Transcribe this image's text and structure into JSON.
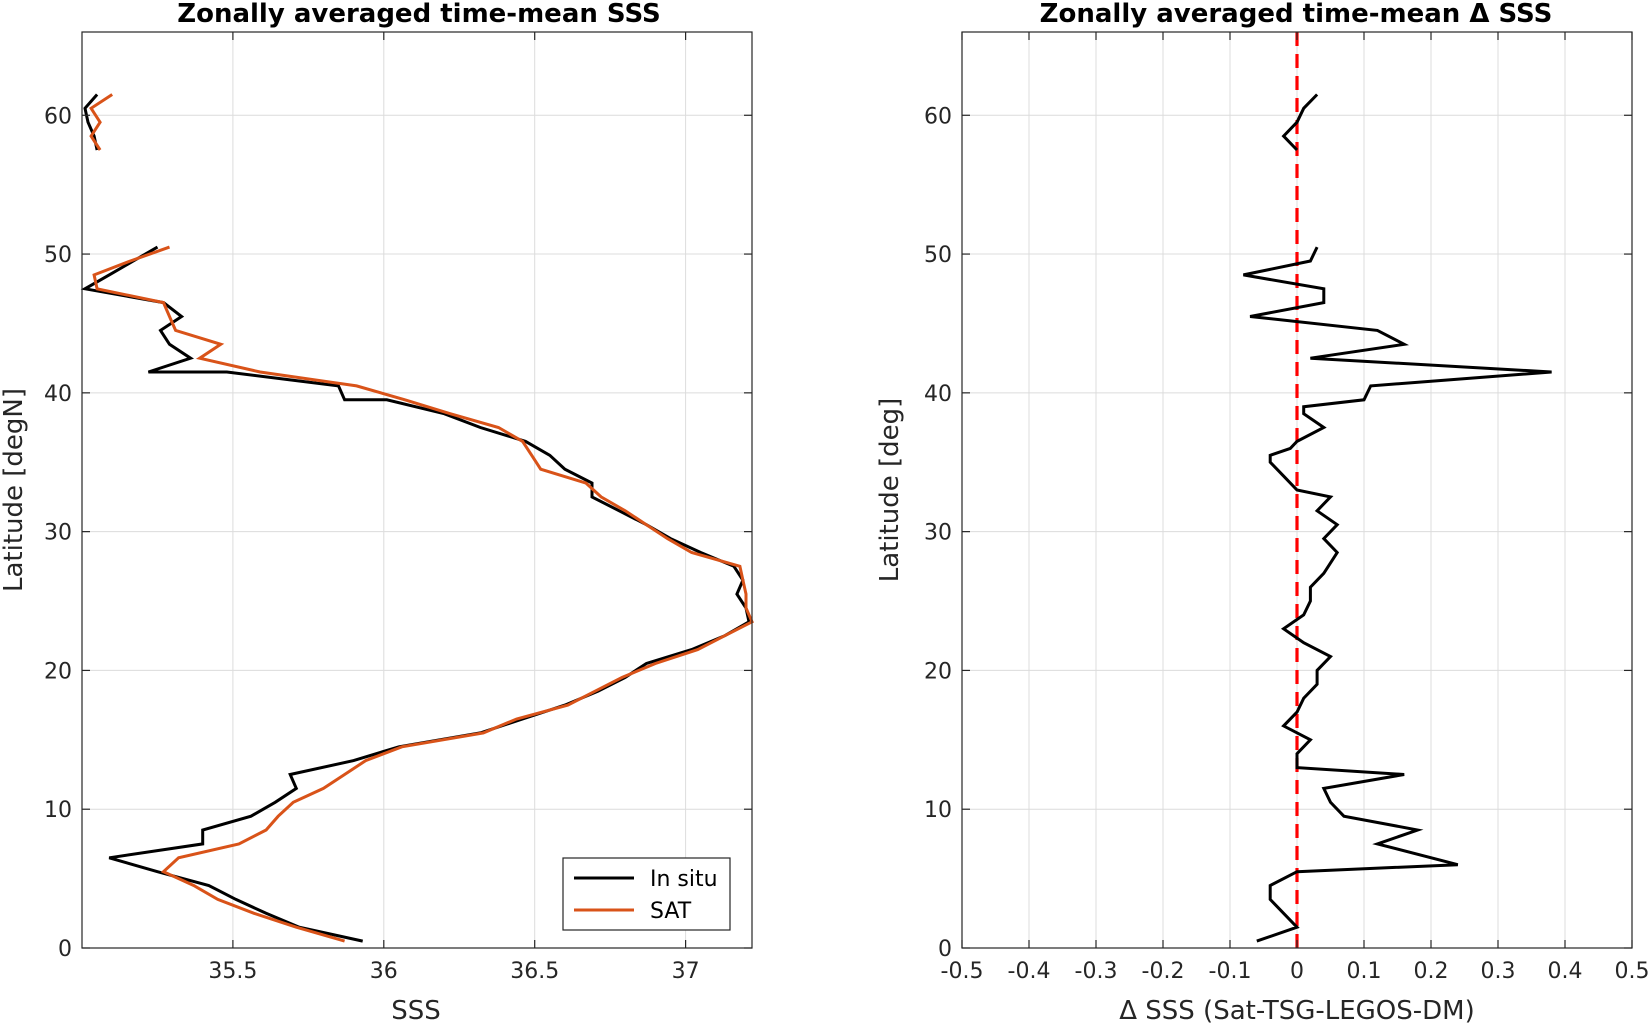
{
  "chart_data": [
    {
      "type": "line",
      "title": "Zonally averaged time-mean SSS",
      "xlabel": "SSS",
      "ylabel": "Latitude [degN]",
      "xlim": [
        35.0,
        37.22
      ],
      "ylim": [
        0,
        66
      ],
      "xticks": [
        35.5,
        36,
        36.5,
        37
      ],
      "xtick_labels": [
        "35.5",
        "36",
        "36.5",
        "37"
      ],
      "yticks": [
        0,
        10,
        20,
        30,
        40,
        50,
        60
      ],
      "ytick_labels": [
        "0",
        "10",
        "20",
        "30",
        "40",
        "50",
        "60"
      ],
      "grid": true,
      "legend_position": "bottom-right",
      "series": [
        {
          "name": "In situ",
          "color": "#000000",
          "segments": [
            [
              [
                35.93,
                0.5
              ],
              [
                35.72,
                1.5
              ],
              [
                35.61,
                2.5
              ],
              [
                35.51,
                3.5
              ],
              [
                35.42,
                4.5
              ],
              [
                35.25,
                5.5
              ],
              [
                35.09,
                6.5
              ],
              [
                35.4,
                7.5
              ],
              [
                35.4,
                8.5
              ],
              [
                35.56,
                9.5
              ],
              [
                35.64,
                10.5
              ],
              [
                35.71,
                11.5
              ],
              [
                35.69,
                12.5
              ],
              [
                35.9,
                13.5
              ],
              [
                36.05,
                14.5
              ],
              [
                36.32,
                15.5
              ],
              [
                36.46,
                16.5
              ],
              [
                36.6,
                17.5
              ],
              [
                36.71,
                18.5
              ],
              [
                36.8,
                19.5
              ],
              [
                36.87,
                20.5
              ],
              [
                37.02,
                21.5
              ],
              [
                37.13,
                22.5
              ],
              [
                37.21,
                23.5
              ],
              [
                37.2,
                24.5
              ],
              [
                37.17,
                25.5
              ],
              [
                37.19,
                26.5
              ],
              [
                37.16,
                27.5
              ],
              [
                37.05,
                28.5
              ],
              [
                36.95,
                29.5
              ],
              [
                36.87,
                30.5
              ],
              [
                36.78,
                31.5
              ],
              [
                36.69,
                32.5
              ],
              [
                36.69,
                33.5
              ],
              [
                36.6,
                34.5
              ],
              [
                36.55,
                35.5
              ],
              [
                36.47,
                36.5
              ],
              [
                36.32,
                37.5
              ],
              [
                36.2,
                38.5
              ],
              [
                36.01,
                39.5
              ],
              [
                35.87,
                39.5
              ],
              [
                35.85,
                40.5
              ],
              [
                35.48,
                41.5
              ],
              [
                35.22,
                41.5
              ],
              [
                35.36,
                42.5
              ],
              [
                35.29,
                43.5
              ],
              [
                35.26,
                44.5
              ],
              [
                35.33,
                45.5
              ],
              [
                35.27,
                46.5
              ],
              [
                35.01,
                47.5
              ],
              [
                35.09,
                48.5
              ],
              [
                35.17,
                49.5
              ],
              [
                35.25,
                50.5
              ]
            ],
            [
              [
                35.05,
                57.5
              ],
              [
                35.04,
                58.5
              ],
              [
                35.02,
                59.5
              ],
              [
                35.01,
                60.5
              ],
              [
                35.05,
                61.5
              ]
            ]
          ]
        },
        {
          "name": "SAT",
          "color": "#d95319",
          "segments": [
            [
              [
                35.87,
                0.5
              ],
              [
                35.71,
                1.5
              ],
              [
                35.57,
                2.5
              ],
              [
                35.45,
                3.5
              ],
              [
                35.37,
                4.5
              ],
              [
                35.27,
                5.5
              ],
              [
                35.32,
                6.5
              ],
              [
                35.52,
                7.5
              ],
              [
                35.61,
                8.5
              ],
              [
                35.65,
                9.5
              ],
              [
                35.7,
                10.5
              ],
              [
                35.8,
                11.5
              ],
              [
                35.87,
                12.5
              ],
              [
                35.94,
                13.5
              ],
              [
                36.06,
                14.5
              ],
              [
                36.33,
                15.5
              ],
              [
                36.44,
                16.5
              ],
              [
                36.61,
                17.5
              ],
              [
                36.7,
                18.5
              ],
              [
                36.79,
                19.5
              ],
              [
                36.9,
                20.5
              ],
              [
                37.04,
                21.5
              ],
              [
                37.13,
                22.5
              ],
              [
                37.22,
                23.5
              ],
              [
                37.2,
                24.5
              ],
              [
                37.2,
                25.5
              ],
              [
                37.19,
                26.5
              ],
              [
                37.18,
                27.5
              ],
              [
                37.02,
                28.5
              ],
              [
                36.94,
                29.5
              ],
              [
                36.87,
                30.5
              ],
              [
                36.8,
                31.5
              ],
              [
                36.72,
                32.5
              ],
              [
                36.67,
                33.5
              ],
              [
                36.52,
                34.5
              ],
              [
                36.49,
                35.5
              ],
              [
                36.46,
                36.5
              ],
              [
                36.38,
                37.5
              ],
              [
                36.22,
                38.5
              ],
              [
                36.07,
                39.5
              ],
              [
                35.91,
                40.5
              ],
              [
                35.59,
                41.5
              ],
              [
                35.39,
                42.5
              ],
              [
                35.46,
                43.5
              ],
              [
                35.31,
                44.5
              ],
              [
                35.29,
                45.5
              ],
              [
                35.27,
                46.5
              ],
              [
                35.05,
                47.5
              ],
              [
                35.04,
                48.5
              ],
              [
                35.16,
                49.5
              ],
              [
                35.29,
                50.5
              ]
            ],
            [
              [
                35.06,
                57.5
              ],
              [
                35.03,
                58.5
              ],
              [
                35.06,
                59.5
              ],
              [
                35.03,
                60.5
              ],
              [
                35.1,
                61.5
              ]
            ]
          ]
        }
      ]
    },
    {
      "type": "line",
      "title": "Zonally averaged time-mean Δ SSS",
      "xlabel": "Δ SSS (Sat-TSG-LEGOS-DM)",
      "ylabel": "Latitude [deg]",
      "xlim": [
        -0.5,
        0.5
      ],
      "ylim": [
        0,
        66
      ],
      "xticks": [
        -0.5,
        -0.4,
        -0.3,
        -0.2,
        -0.1,
        0,
        0.1,
        0.2,
        0.3,
        0.4,
        0.5
      ],
      "xtick_labels": [
        "-0.5",
        "-0.4",
        "-0.3",
        "-0.2",
        "-0.1",
        "0",
        "0.1",
        "0.2",
        "0.3",
        "0.4",
        "0.5"
      ],
      "yticks": [
        0,
        10,
        20,
        30,
        40,
        50,
        60
      ],
      "ytick_labels": [
        "0",
        "10",
        "20",
        "30",
        "40",
        "50",
        "60"
      ],
      "grid": true,
      "zero_line": {
        "x": 0,
        "color": "#ff0000",
        "style": "dashed"
      },
      "series": [
        {
          "color": "#000000",
          "segments": [
            [
              [
                -0.06,
                0.5
              ],
              [
                0.0,
                1.5
              ],
              [
                -0.02,
                2.5
              ],
              [
                -0.04,
                3.5
              ],
              [
                -0.04,
                4.5
              ],
              [
                0.0,
                5.5
              ],
              [
                0.24,
                6.0
              ],
              [
                0.12,
                7.5
              ],
              [
                0.18,
                8.5
              ],
              [
                0.07,
                9.5
              ],
              [
                0.05,
                10.5
              ],
              [
                0.04,
                11.5
              ],
              [
                0.16,
                12.5
              ],
              [
                0.0,
                13.0
              ],
              [
                0.0,
                13.5
              ],
              [
                0.0,
                14.0
              ],
              [
                0.02,
                15.0
              ],
              [
                -0.02,
                16.0
              ],
              [
                0.0,
                17.0
              ],
              [
                0.01,
                18.0
              ],
              [
                0.03,
                19.0
              ],
              [
                0.03,
                20.0
              ],
              [
                0.05,
                21.0
              ],
              [
                0.01,
                22.0
              ],
              [
                -0.02,
                23.0
              ],
              [
                0.01,
                24.0
              ],
              [
                0.02,
                25.0
              ],
              [
                0.02,
                26.0
              ],
              [
                0.04,
                27.0
              ],
              [
                0.06,
                28.5
              ],
              [
                0.04,
                29.5
              ],
              [
                0.06,
                30.5
              ],
              [
                0.03,
                31.5
              ],
              [
                0.05,
                32.5
              ],
              [
                0.0,
                33.0
              ],
              [
                -0.02,
                34.0
              ],
              [
                -0.04,
                35.0
              ],
              [
                -0.04,
                35.5
              ],
              [
                -0.01,
                36.0
              ],
              [
                0.0,
                36.5
              ],
              [
                0.04,
                37.5
              ],
              [
                0.01,
                38.5
              ],
              [
                0.01,
                39.0
              ],
              [
                0.1,
                39.5
              ],
              [
                0.11,
                40.5
              ],
              [
                0.38,
                41.5
              ],
              [
                0.02,
                42.5
              ],
              [
                0.16,
                43.5
              ],
              [
                0.12,
                44.5
              ],
              [
                -0.07,
                45.5
              ],
              [
                0.04,
                46.5
              ],
              [
                0.04,
                47.5
              ],
              [
                -0.08,
                48.5
              ],
              [
                0.02,
                49.5
              ],
              [
                0.03,
                50.5
              ]
            ],
            [
              [
                0.0,
                57.5
              ],
              [
                -0.02,
                58.5
              ],
              [
                0.0,
                59.5
              ],
              [
                0.01,
                60.5
              ],
              [
                0.03,
                61.5
              ]
            ]
          ]
        }
      ]
    }
  ],
  "legend": {
    "items": [
      {
        "label": "In situ",
        "color": "#000000"
      },
      {
        "label": "SAT",
        "color": "#d95319"
      }
    ]
  }
}
